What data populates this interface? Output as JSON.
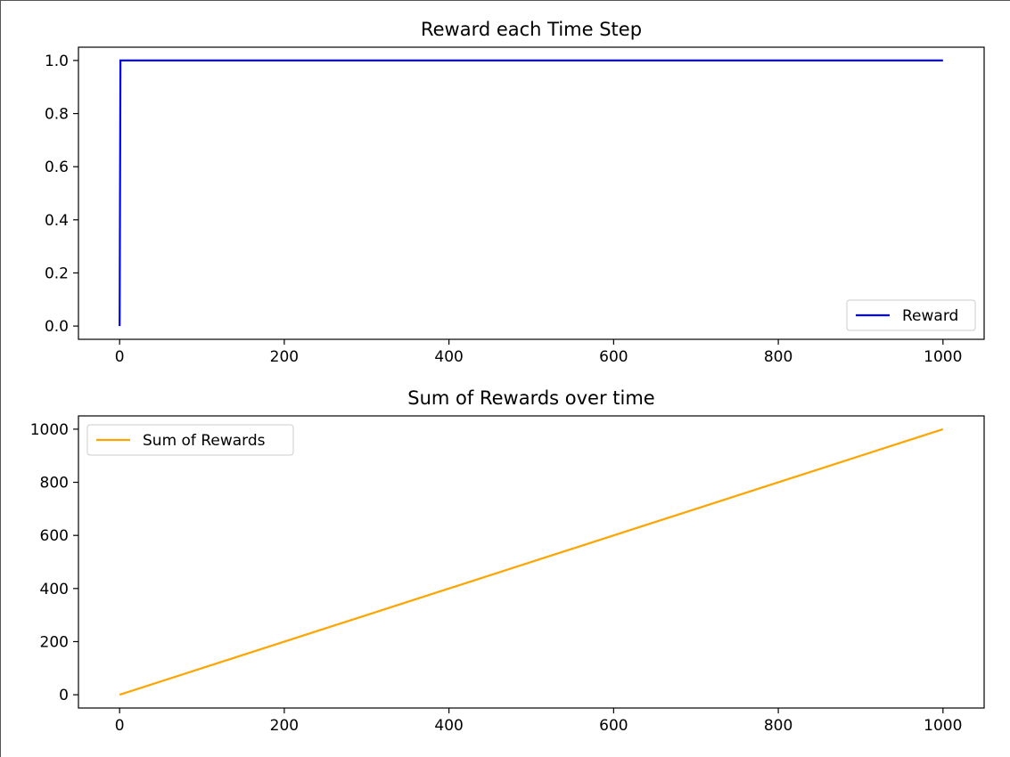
{
  "chart_data": [
    {
      "type": "line",
      "title": "Reward each Time Step",
      "xlabel": "",
      "ylabel": "",
      "xlim": [
        -50,
        1050
      ],
      "ylim": [
        -0.05,
        1.05
      ],
      "x_ticks": [
        0,
        200,
        400,
        600,
        800,
        1000
      ],
      "y_ticks": [
        0.0,
        0.2,
        0.4,
        0.6,
        0.8,
        1.0
      ],
      "x_tick_labels": [
        "0",
        "200",
        "400",
        "600",
        "800",
        "1000"
      ],
      "y_tick_labels": [
        "0.0",
        "0.2",
        "0.4",
        "0.6",
        "0.8",
        "1.0"
      ],
      "grid": false,
      "legend_position": "lower-right",
      "series": [
        {
          "name": "Reward",
          "color": "#0000ff",
          "x": [
            0,
            1,
            1000
          ],
          "y": [
            0,
            1,
            1
          ]
        }
      ]
    },
    {
      "type": "line",
      "title": "Sum of Rewards over time",
      "xlabel": "",
      "ylabel": "",
      "xlim": [
        -50,
        1050
      ],
      "ylim": [
        -50,
        1050
      ],
      "x_ticks": [
        0,
        200,
        400,
        600,
        800,
        1000
      ],
      "y_ticks": [
        0,
        200,
        400,
        600,
        800,
        1000
      ],
      "x_tick_labels": [
        "0",
        "200",
        "400",
        "600",
        "800",
        "1000"
      ],
      "y_tick_labels": [
        "0",
        "200",
        "400",
        "600",
        "800",
        "1000"
      ],
      "grid": false,
      "legend_position": "upper-left",
      "series": [
        {
          "name": "Sum of Rewards",
          "color": "#ffa500",
          "x": [
            0,
            1000
          ],
          "y": [
            0,
            1000
          ]
        }
      ]
    }
  ]
}
